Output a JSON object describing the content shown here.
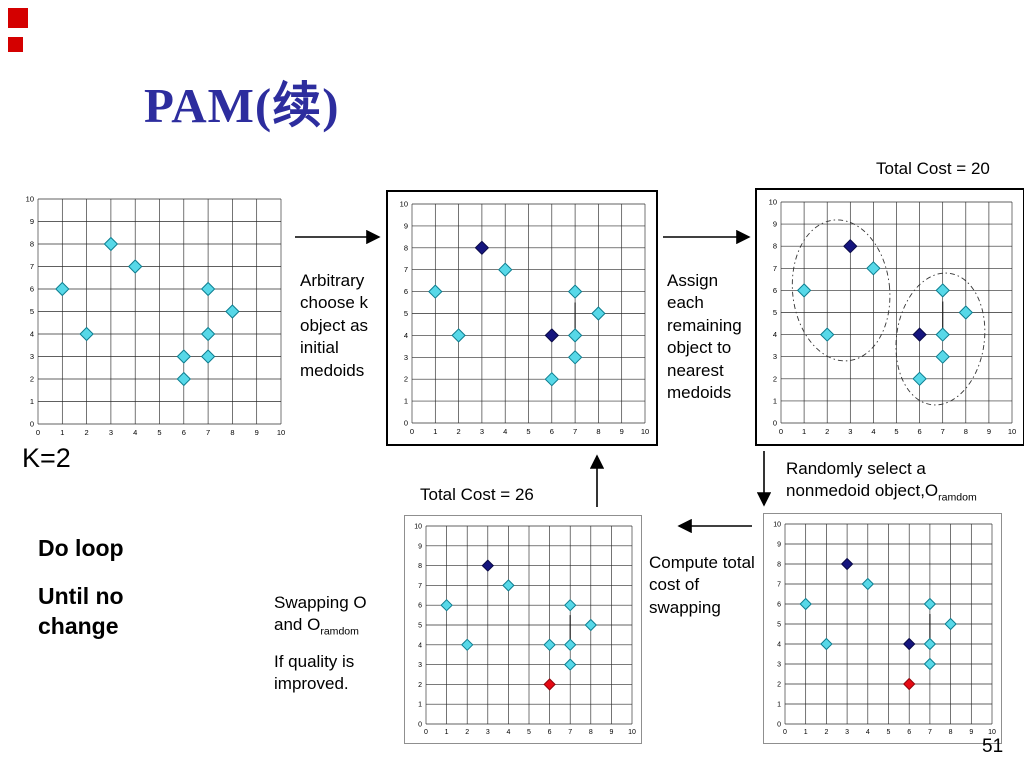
{
  "slide": {
    "title": "PAM(续)",
    "page_number": "51",
    "k_label": "K=2",
    "do_loop_line1": "Do loop",
    "do_loop_line2": "Until no change",
    "total_cost_top": "Total Cost = 20",
    "total_cost_bottom": "Total Cost = 26",
    "arbitrary_text": "Arbitrary choose k object as initial medoids",
    "assign_text": "Assign each remaining object to nearest medoids",
    "random_text": "Randomly select a nonmedoid object,O",
    "random_sub": "ramdom",
    "swap_text": "Swapping O and O",
    "swap_sub": "ramdom",
    "swap_text2": "If quality is improved.",
    "compute_text": "Compute total cost of swapping"
  },
  "colors": {
    "title": "#2d2d9e",
    "decoration_red": "#d40000",
    "grid": "#2b2b2b",
    "cyan_fill": "#57d8e8",
    "cyan_stroke": "#0d7d8f",
    "navy_fill": "#15157e",
    "navy_stroke": "#0a0a46",
    "red_fill": "#e60a14",
    "red_stroke": "#8f050c",
    "arrow": "#000000"
  },
  "chart_axes": {
    "xlim": [
      0,
      10
    ],
    "ylim": [
      0,
      10
    ],
    "ticks": [
      0,
      1,
      2,
      3,
      4,
      5,
      6,
      7,
      8,
      9,
      10
    ],
    "grid": "on"
  },
  "chart_data": [
    {
      "id": "chart1",
      "type": "scatter",
      "title": "initial objects",
      "points": [
        {
          "x": 3,
          "y": 8,
          "c": "cyan"
        },
        {
          "x": 4,
          "y": 7,
          "c": "cyan"
        },
        {
          "x": 1,
          "y": 6,
          "c": "cyan"
        },
        {
          "x": 7,
          "y": 6,
          "c": "cyan"
        },
        {
          "x": 8,
          "y": 5,
          "c": "cyan"
        },
        {
          "x": 2,
          "y": 4,
          "c": "cyan"
        },
        {
          "x": 7,
          "y": 4,
          "c": "cyan"
        },
        {
          "x": 6,
          "y": 3,
          "c": "cyan"
        },
        {
          "x": 7,
          "y": 3,
          "c": "cyan"
        },
        {
          "x": 6,
          "y": 2,
          "c": "cyan"
        }
      ],
      "segments": [],
      "ellipses": []
    },
    {
      "id": "chart2",
      "type": "scatter",
      "title": "arbitrary initial medoids",
      "points": [
        {
          "x": 3,
          "y": 8,
          "c": "navy"
        },
        {
          "x": 4,
          "y": 7,
          "c": "cyan"
        },
        {
          "x": 1,
          "y": 6,
          "c": "cyan"
        },
        {
          "x": 7,
          "y": 6,
          "c": "cyan"
        },
        {
          "x": 8,
          "y": 5,
          "c": "cyan"
        },
        {
          "x": 2,
          "y": 4,
          "c": "cyan"
        },
        {
          "x": 6,
          "y": 4,
          "c": "navy"
        },
        {
          "x": 7,
          "y": 4,
          "c": "cyan"
        },
        {
          "x": 7,
          "y": 3,
          "c": "cyan"
        },
        {
          "x": 6,
          "y": 2,
          "c": "cyan"
        }
      ],
      "segments": [
        [
          7,
          5.5,
          7,
          3.9
        ]
      ],
      "ellipses": []
    },
    {
      "id": "chart3",
      "type": "scatter",
      "title": "assign to nearest medoid, Total Cost = 20",
      "points": [
        {
          "x": 3,
          "y": 8,
          "c": "navy"
        },
        {
          "x": 4,
          "y": 7,
          "c": "cyan"
        },
        {
          "x": 1,
          "y": 6,
          "c": "cyan"
        },
        {
          "x": 7,
          "y": 6,
          "c": "cyan"
        },
        {
          "x": 8,
          "y": 5,
          "c": "cyan"
        },
        {
          "x": 2,
          "y": 4,
          "c": "cyan"
        },
        {
          "x": 6,
          "y": 4,
          "c": "navy"
        },
        {
          "x": 7,
          "y": 4,
          "c": "cyan"
        },
        {
          "x": 7,
          "y": 3,
          "c": "cyan"
        },
        {
          "x": 6,
          "y": 2,
          "c": "cyan"
        }
      ],
      "segments": [
        [
          7,
          5.5,
          7,
          3.9
        ]
      ],
      "ellipses": [
        {
          "cx": 2.6,
          "cy": 6.0,
          "rx": 2.1,
          "ry": 3.2,
          "rot": -6
        },
        {
          "cx": 6.9,
          "cy": 3.8,
          "rx": 1.9,
          "ry": 3.0,
          "rot": 8
        }
      ]
    },
    {
      "id": "chart4",
      "type": "scatter",
      "title": "after swapping, Total Cost = 26",
      "points": [
        {
          "x": 3,
          "y": 8,
          "c": "navy"
        },
        {
          "x": 4,
          "y": 7,
          "c": "cyan"
        },
        {
          "x": 1,
          "y": 6,
          "c": "cyan"
        },
        {
          "x": 7,
          "y": 6,
          "c": "cyan"
        },
        {
          "x": 8,
          "y": 5,
          "c": "cyan"
        },
        {
          "x": 2,
          "y": 4,
          "c": "cyan"
        },
        {
          "x": 6,
          "y": 4,
          "c": "cyan"
        },
        {
          "x": 7,
          "y": 4,
          "c": "cyan"
        },
        {
          "x": 7,
          "y": 3,
          "c": "cyan"
        },
        {
          "x": 6,
          "y": 2,
          "c": "red"
        }
      ],
      "segments": [
        [
          7,
          5.5,
          7,
          3.9
        ]
      ],
      "ellipses": []
    },
    {
      "id": "chart5",
      "type": "scatter",
      "title": "randomly selected nonmedoid",
      "points": [
        {
          "x": 3,
          "y": 8,
          "c": "navy"
        },
        {
          "x": 4,
          "y": 7,
          "c": "cyan"
        },
        {
          "x": 1,
          "y": 6,
          "c": "cyan"
        },
        {
          "x": 7,
          "y": 6,
          "c": "cyan"
        },
        {
          "x": 8,
          "y": 5,
          "c": "cyan"
        },
        {
          "x": 2,
          "y": 4,
          "c": "cyan"
        },
        {
          "x": 6,
          "y": 4,
          "c": "navy"
        },
        {
          "x": 7,
          "y": 4,
          "c": "cyan"
        },
        {
          "x": 7,
          "y": 3,
          "c": "cyan"
        },
        {
          "x": 6,
          "y": 2,
          "c": "red"
        }
      ],
      "segments": [
        [
          7,
          5.5,
          7,
          3.9
        ]
      ],
      "ellipses": []
    }
  ]
}
